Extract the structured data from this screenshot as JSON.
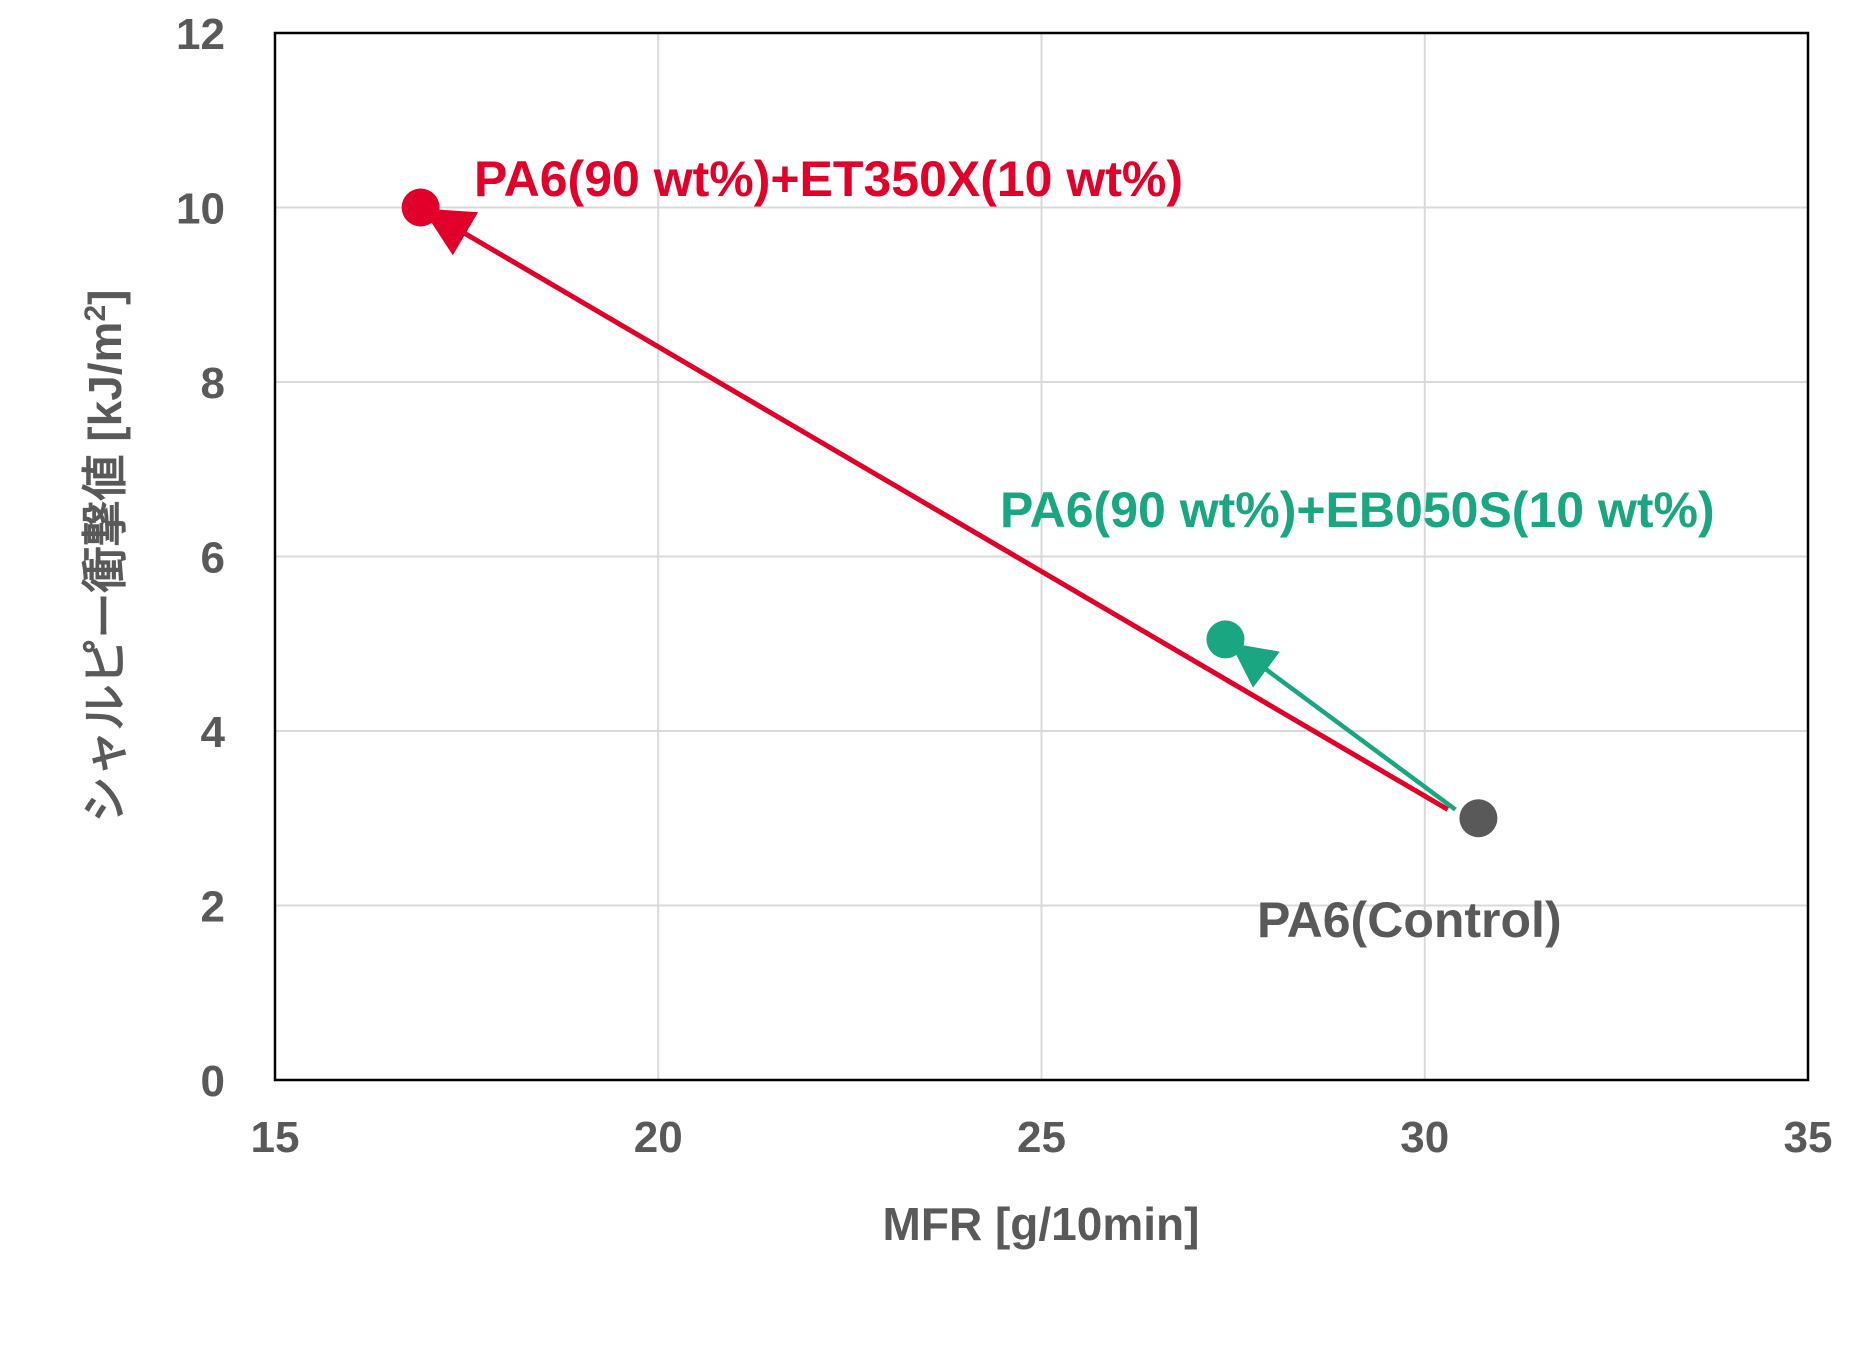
{
  "chart_data": {
    "type": "scatter",
    "title": "",
    "xlabel": "MFR [g/10min]",
    "ylabel_main": "シャルピー衝撃値 [kJ/m",
    "ylabel_sup": "2",
    "ylabel_end": "]",
    "xlim": [
      15,
      35
    ],
    "ylim": [
      0,
      12
    ],
    "xticks": [
      15,
      20,
      25,
      30,
      35
    ],
    "yticks": [
      0,
      2,
      4,
      6,
      8,
      10,
      12
    ],
    "xtick_labels": [
      "15",
      "20",
      "25",
      "30",
      "35"
    ],
    "ytick_labels": [
      "0",
      "2",
      "4",
      "6",
      "8",
      "10",
      "12"
    ],
    "grid": true,
    "legend": "none",
    "axis_text_color": "#595959",
    "grid_color": "#d9d9d9",
    "points": [
      {
        "label": "PA6(Control)",
        "x": 30.7,
        "y": 3.0,
        "color": "#595959"
      },
      {
        "label": "PA6(90 wt%)+EB050S(10 wt%)",
        "x": 27.4,
        "y": 5.05,
        "color": "#19a680"
      },
      {
        "label": "PA6(90 wt%)+ET350X(10 wt%)",
        "x": 16.9,
        "y": 10.0,
        "color": "#e0002a"
      }
    ],
    "arrows": [
      {
        "from": [
          30.3,
          3.1
        ],
        "to": [
          16.9,
          10.0
        ],
        "color": "#e0002a"
      },
      {
        "from": [
          30.4,
          3.1
        ],
        "to": [
          27.4,
          5.05
        ],
        "color": "#19a680"
      }
    ]
  }
}
